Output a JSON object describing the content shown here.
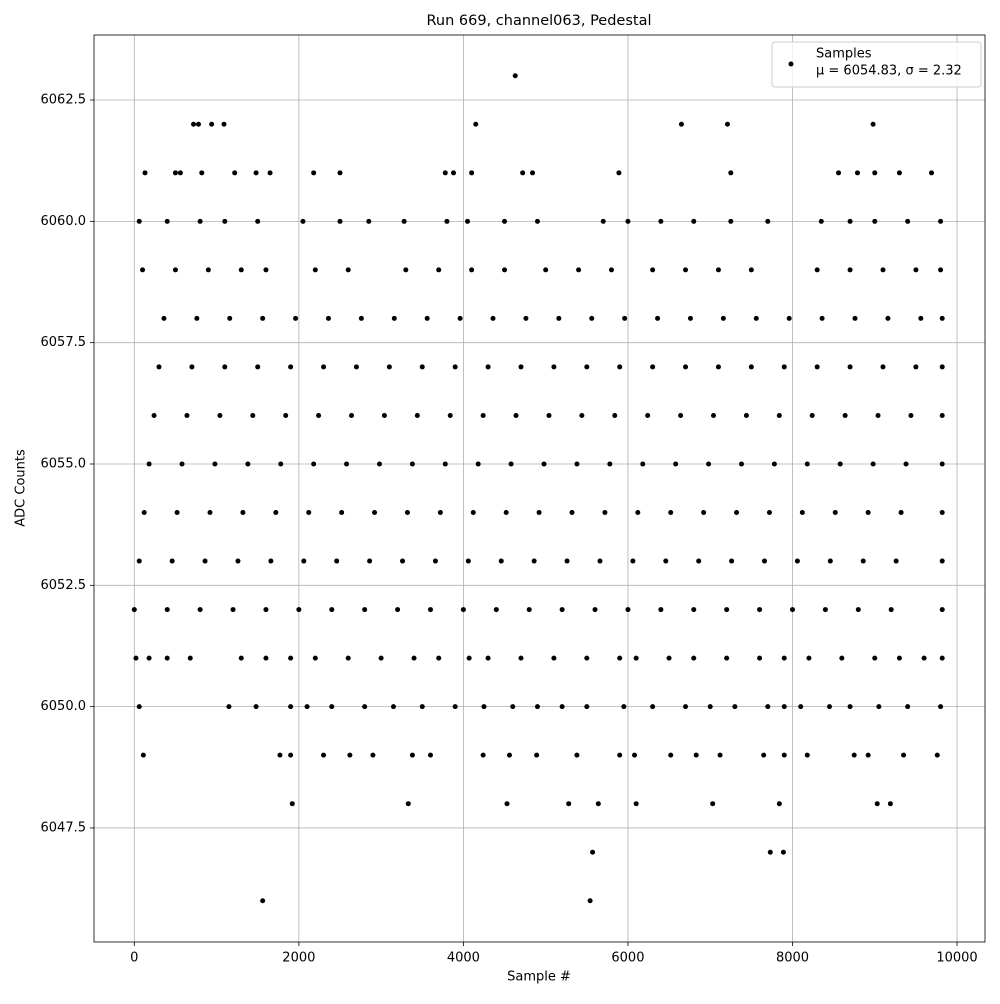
{
  "chart_data": {
    "type": "scatter",
    "title": "Run 669, channel063, Pedestal",
    "x_label": "Sample #",
    "y_label": "ADC Counts",
    "xlim": [
      -490,
      10340
    ],
    "ylim": [
      6045.15,
      6063.84
    ],
    "xticks": [
      0,
      2000,
      4000,
      6000,
      8000,
      10000
    ],
    "yticks": [
      6047.5,
      {
        "value": 6050,
        "label": "6050.0"
      },
      6052.5,
      {
        "value": 6055,
        "label": "6055.0"
      },
      6057.5,
      {
        "value": 6060,
        "label": "6060.0"
      },
      6062.5
    ],
    "grid": true,
    "legend": "upper right",
    "legend_stats": "μ = 6054.83, σ = 2.32",
    "series": [
      {
        "name": "Samples",
        "color": "#000000",
        "x": [
          4630,
          720,
          780,
          940,
          1090,
          4150,
          6650,
          7210,
          8980,
          130,
          500,
          560,
          820,
          1220,
          1480,
          1650,
          2180,
          2500,
          3780,
          3880,
          4100,
          4720,
          4840,
          5890,
          7250,
          8560,
          8790,
          9000,
          9300,
          9690,
          60,
          400,
          800,
          1100,
          1500,
          2050,
          2500,
          2850,
          3280,
          3800,
          4050,
          4500,
          4900,
          5700,
          6000,
          6400,
          6800,
          7250,
          7700,
          8350,
          8700,
          9000,
          9400,
          9800,
          100,
          500,
          900,
          1300,
          1600,
          2200,
          2600,
          3300,
          3700,
          4100,
          4500,
          5000,
          5400,
          5800,
          6300,
          6700,
          7100,
          7500,
          8300,
          8700,
          9100,
          9500,
          9800,
          360,
          760,
          1160,
          1560,
          1960,
          2360,
          2760,
          3160,
          3560,
          3960,
          4360,
          4760,
          5160,
          5560,
          5960,
          6360,
          6760,
          7160,
          7560,
          7960,
          8360,
          8760,
          9160,
          9560,
          9820,
          300,
          700,
          1100,
          1500,
          1900,
          2300,
          2700,
          3100,
          3500,
          3900,
          4300,
          4700,
          5100,
          5500,
          5900,
          6300,
          6700,
          7100,
          7500,
          7900,
          8300,
          8700,
          9100,
          9500,
          9820,
          240,
          640,
          1040,
          1440,
          1840,
          2240,
          2640,
          3040,
          3440,
          3840,
          4240,
          4640,
          5040,
          5440,
          5840,
          6240,
          6640,
          7040,
          7440,
          7840,
          8240,
          8640,
          9040,
          9440,
          9820,
          180,
          580,
          980,
          1380,
          1780,
          2180,
          2580,
          2980,
          3380,
          3780,
          4180,
          4580,
          4980,
          5380,
          5780,
          6180,
          6580,
          6980,
          7380,
          7780,
          8180,
          8580,
          8980,
          9380,
          9820,
          120,
          520,
          920,
          1320,
          1720,
          2120,
          2520,
          2920,
          3320,
          3720,
          4120,
          4520,
          4920,
          5320,
          5720,
          6120,
          6520,
          6920,
          7320,
          7720,
          8120,
          8520,
          8920,
          9320,
          9820,
          60,
          460,
          860,
          1260,
          1660,
          2060,
          2460,
          2860,
          3260,
          3660,
          4060,
          4460,
          4860,
          5260,
          5660,
          6060,
          6460,
          6860,
          7260,
          7660,
          8060,
          8460,
          8860,
          9260,
          9820,
          0,
          400,
          800,
          1200,
          1600,
          2000,
          2400,
          2800,
          3200,
          3600,
          4000,
          4400,
          4800,
          5200,
          5600,
          6000,
          6400,
          6800,
          7200,
          7600,
          8000,
          8400,
          8800,
          9200,
          9820,
          20,
          180,
          400,
          680,
          1300,
          1600,
          1900,
          2200,
          2600,
          3000,
          3400,
          3700,
          4070,
          4300,
          4700,
          5100,
          5500,
          5900,
          6100,
          6500,
          6800,
          7200,
          7600,
          7900,
          8200,
          8600,
          9000,
          9300,
          9600,
          9820,
          60,
          1150,
          1480,
          1900,
          2100,
          2400,
          2800,
          3150,
          3500,
          3900,
          4250,
          4600,
          4900,
          5200,
          5500,
          5950,
          6300,
          6700,
          7000,
          7300,
          7700,
          7900,
          8100,
          8450,
          8700,
          9050,
          9400,
          9800,
          110,
          1770,
          1900,
          2300,
          2620,
          2900,
          3380,
          3600,
          4240,
          4560,
          4890,
          5380,
          5900,
          6080,
          6520,
          6830,
          7120,
          7650,
          7900,
          8180,
          8750,
          8920,
          9350,
          9760,
          1920,
          3330,
          4530,
          5280,
          5640,
          6100,
          7030,
          7840,
          9030,
          9190,
          5570,
          7730,
          7890,
          1560,
          5540
        ],
        "values": [
          6063,
          6062,
          6062,
          6062,
          6062,
          6062,
          6062,
          6062,
          6062,
          6061,
          6061,
          6061,
          6061,
          6061,
          6061,
          6061,
          6061,
          6061,
          6061,
          6061,
          6061,
          6061,
          6061,
          6061,
          6061,
          6061,
          6061,
          6061,
          6061,
          6061,
          6060,
          6060,
          6060,
          6060,
          6060,
          6060,
          6060,
          6060,
          6060,
          6060,
          6060,
          6060,
          6060,
          6060,
          6060,
          6060,
          6060,
          6060,
          6060,
          6060,
          6060,
          6060,
          6060,
          6060,
          6059,
          6059,
          6059,
          6059,
          6059,
          6059,
          6059,
          6059,
          6059,
          6059,
          6059,
          6059,
          6059,
          6059,
          6059,
          6059,
          6059,
          6059,
          6059,
          6059,
          6059,
          6059,
          6059,
          6058,
          6058,
          6058,
          6058,
          6058,
          6058,
          6058,
          6058,
          6058,
          6058,
          6058,
          6058,
          6058,
          6058,
          6058,
          6058,
          6058,
          6058,
          6058,
          6058,
          6058,
          6058,
          6058,
          6058,
          6058,
          6057,
          6057,
          6057,
          6057,
          6057,
          6057,
          6057,
          6057,
          6057,
          6057,
          6057,
          6057,
          6057,
          6057,
          6057,
          6057,
          6057,
          6057,
          6057,
          6057,
          6057,
          6057,
          6057,
          6057,
          6057,
          6056,
          6056,
          6056,
          6056,
          6056,
          6056,
          6056,
          6056,
          6056,
          6056,
          6056,
          6056,
          6056,
          6056,
          6056,
          6056,
          6056,
          6056,
          6056,
          6056,
          6056,
          6056,
          6056,
          6056,
          6056,
          6055,
          6055,
          6055,
          6055,
          6055,
          6055,
          6055,
          6055,
          6055,
          6055,
          6055,
          6055,
          6055,
          6055,
          6055,
          6055,
          6055,
          6055,
          6055,
          6055,
          6055,
          6055,
          6055,
          6055,
          6055,
          6054,
          6054,
          6054,
          6054,
          6054,
          6054,
          6054,
          6054,
          6054,
          6054,
          6054,
          6054,
          6054,
          6054,
          6054,
          6054,
          6054,
          6054,
          6054,
          6054,
          6054,
          6054,
          6054,
          6054,
          6054,
          6053,
          6053,
          6053,
          6053,
          6053,
          6053,
          6053,
          6053,
          6053,
          6053,
          6053,
          6053,
          6053,
          6053,
          6053,
          6053,
          6053,
          6053,
          6053,
          6053,
          6053,
          6053,
          6053,
          6053,
          6053,
          6052,
          6052,
          6052,
          6052,
          6052,
          6052,
          6052,
          6052,
          6052,
          6052,
          6052,
          6052,
          6052,
          6052,
          6052,
          6052,
          6052,
          6052,
          6052,
          6052,
          6052,
          6052,
          6052,
          6052,
          6052,
          6051,
          6051,
          6051,
          6051,
          6051,
          6051,
          6051,
          6051,
          6051,
          6051,
          6051,
          6051,
          6051,
          6051,
          6051,
          6051,
          6051,
          6051,
          6051,
          6051,
          6051,
          6051,
          6051,
          6051,
          6051,
          6051,
          6051,
          6051,
          6051,
          6051,
          6050,
          6050,
          6050,
          6050,
          6050,
          6050,
          6050,
          6050,
          6050,
          6050,
          6050,
          6050,
          6050,
          6050,
          6050,
          6050,
          6050,
          6050,
          6050,
          6050,
          6050,
          6050,
          6050,
          6050,
          6050,
          6050,
          6050,
          6050,
          6049,
          6049,
          6049,
          6049,
          6049,
          6049,
          6049,
          6049,
          6049,
          6049,
          6049,
          6049,
          6049,
          6049,
          6049,
          6049,
          6049,
          6049,
          6049,
          6049,
          6049,
          6049,
          6049,
          6049,
          6048,
          6048,
          6048,
          6048,
          6048,
          6048,
          6048,
          6048,
          6048,
          6048,
          6047,
          6047,
          6047,
          6046,
          6046
        ]
      }
    ]
  }
}
